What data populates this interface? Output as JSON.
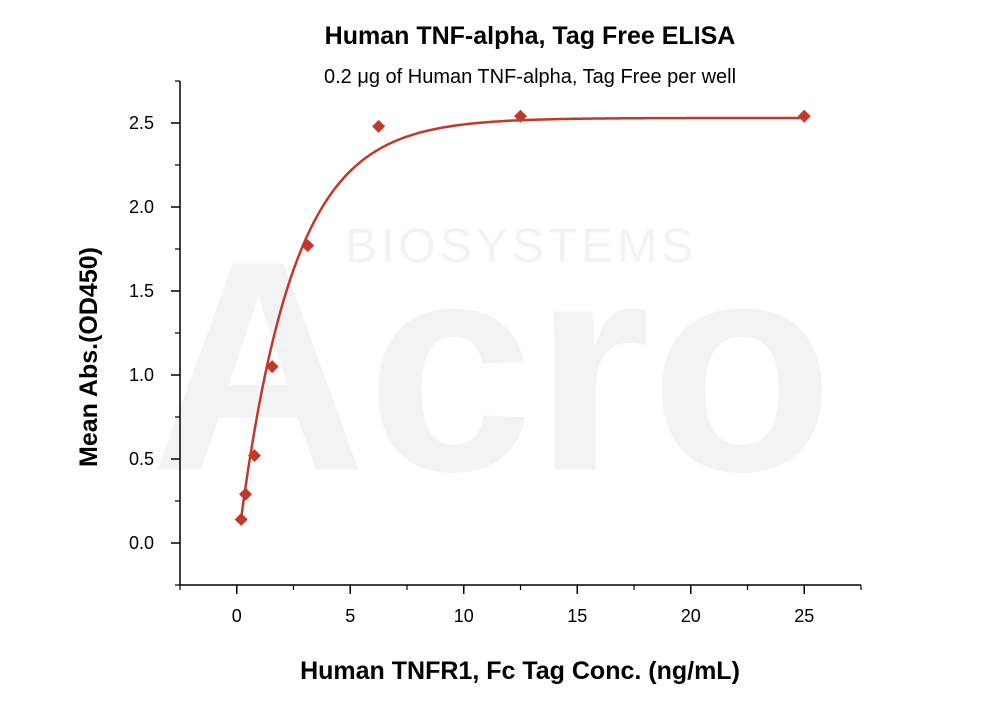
{
  "chart_data": {
    "type": "scatter",
    "title": "Human TNF-alpha, Tag Free ELISA",
    "subtitle": "0.2 μg of Human TNF-alpha, Tag Free per well",
    "xlabel": "Human TNFR1, Fc Tag Conc. (ng/mL)",
    "ylabel": "Mean Abs.(OD450)",
    "xlim": [
      -2.5,
      27.5
    ],
    "ylim": [
      -0.25,
      2.75
    ],
    "xticks": [
      0,
      5,
      10,
      15,
      20,
      25
    ],
    "yticks": [
      0.0,
      0.5,
      1.0,
      1.5,
      2.0,
      2.5
    ],
    "xtick_labels": [
      "0",
      "5",
      "10",
      "15",
      "20",
      "25"
    ],
    "ytick_labels": [
      "0.0",
      "0.5",
      "1.0",
      "1.5",
      "2.0",
      "2.5"
    ],
    "grid": false,
    "series": [
      {
        "marker": "diamond",
        "color": "#c0392b",
        "fit_curve": true,
        "x": [
          0.195,
          0.39,
          0.78,
          1.56,
          3.125,
          6.25,
          12.5,
          25
        ],
        "y": [
          0.14,
          0.29,
          0.52,
          1.05,
          1.77,
          2.48,
          2.54,
          2.54
        ]
      }
    ]
  },
  "watermark": {
    "brand": "Acro",
    "tagline": "BIOSYSTEMS"
  }
}
